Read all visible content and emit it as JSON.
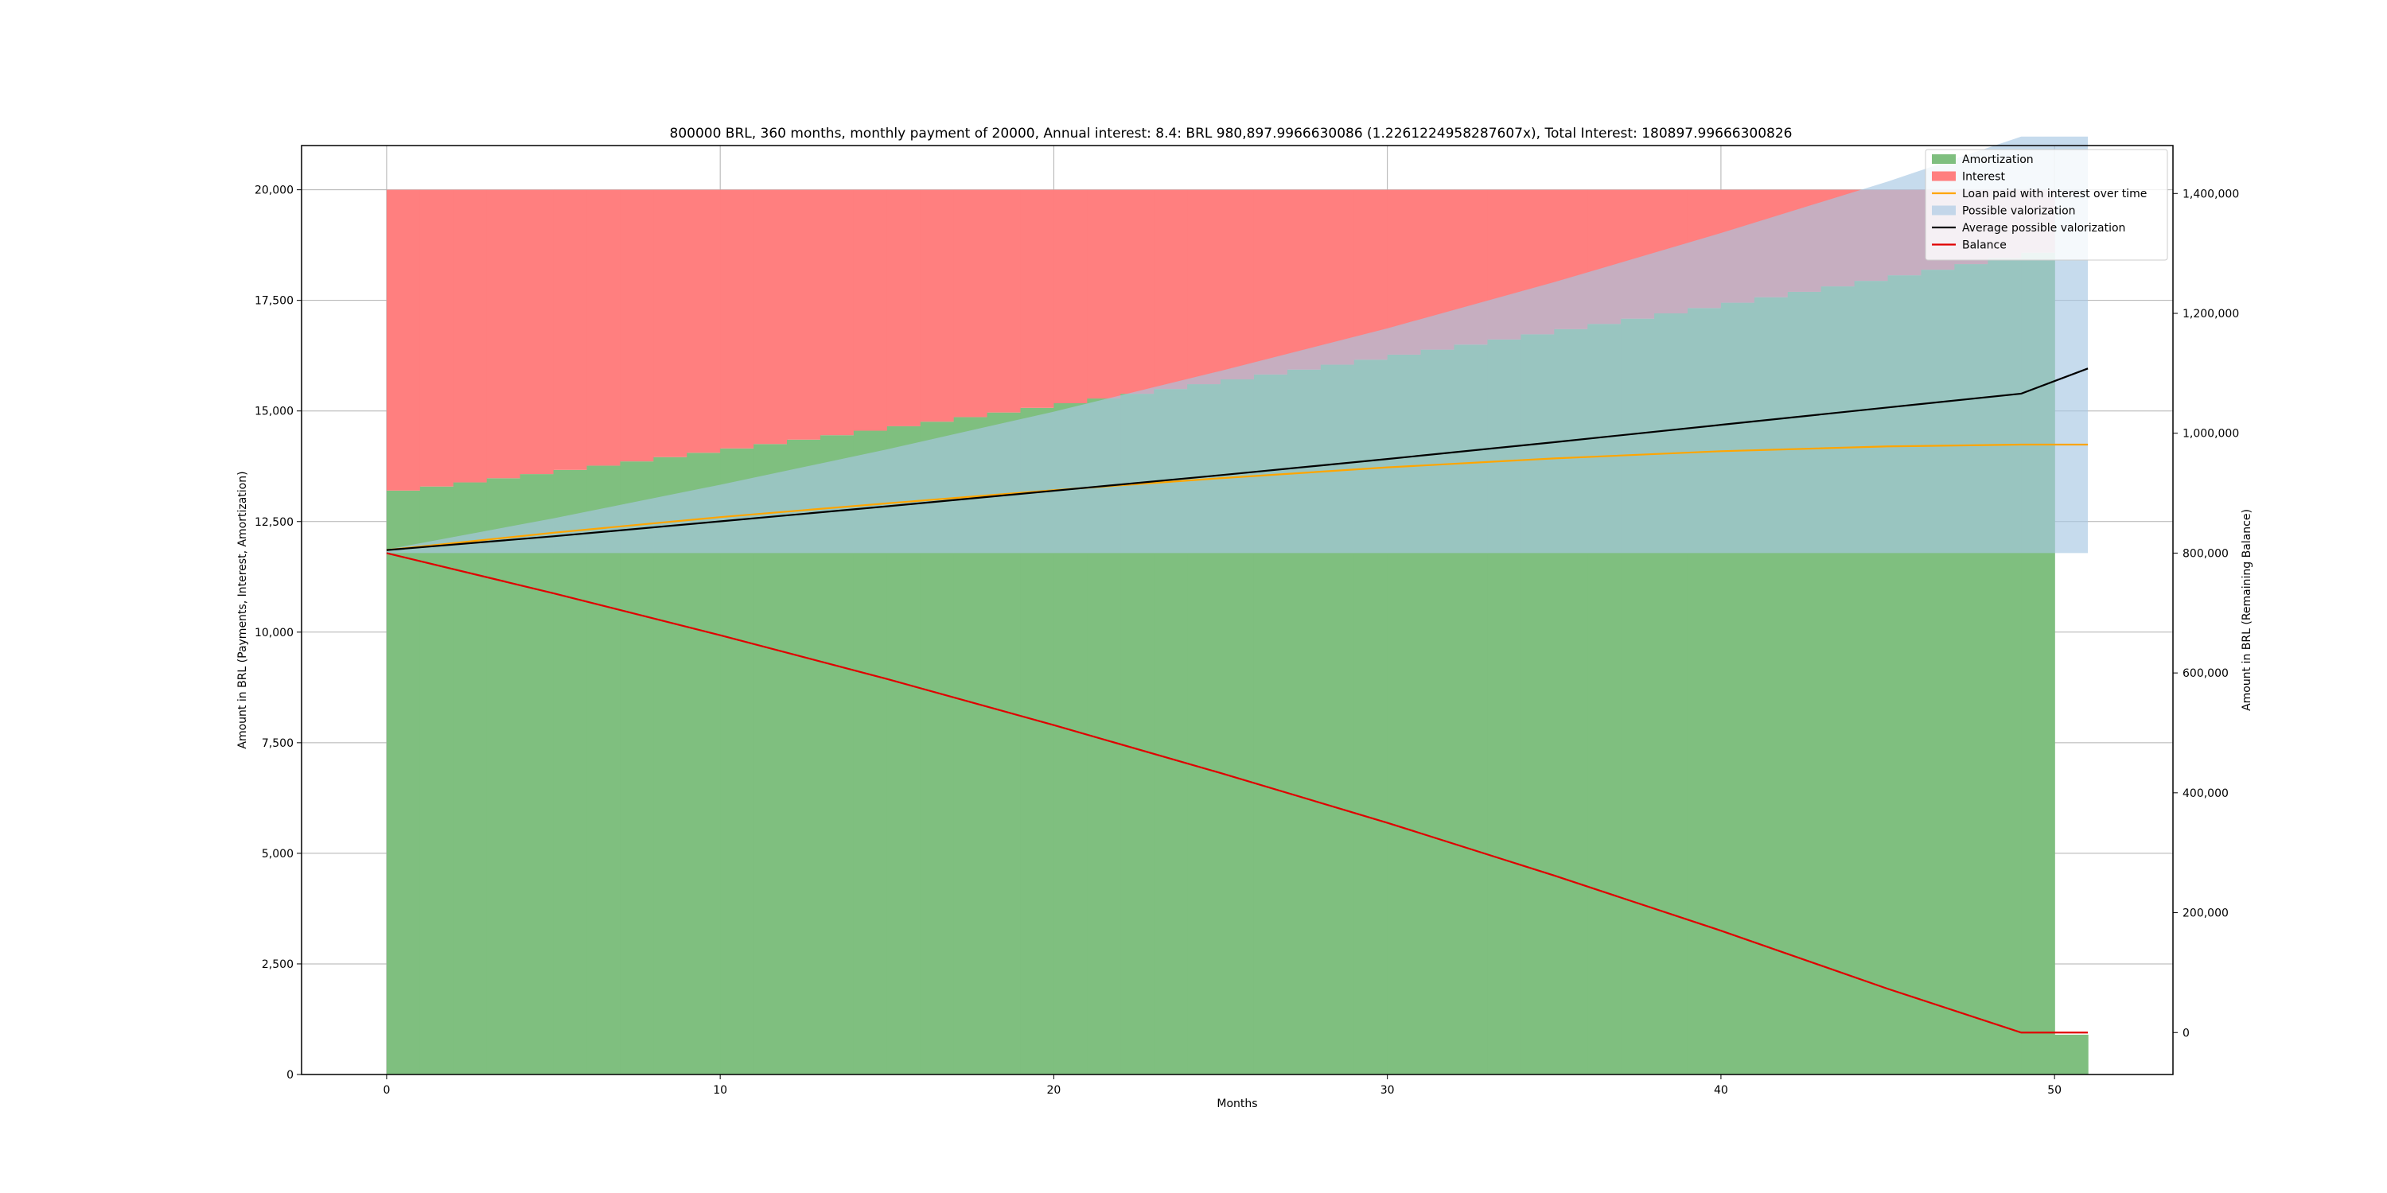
{
  "chart_data": {
    "type": "bar",
    "title": "800000 BRL, 360 months, monthly payment of 20000, Annual interest: 8.4: BRL 980,897.9966630086 (1.2261224958287607x), Total Interest: 180897.99666300826",
    "xlabel": "Months",
    "ylabel_left": "Amount in BRL (Payments, Interest, Amortization)",
    "ylabel_right": "Amount in BRL (Remaining Balance)",
    "xlim": [
      -2.55,
      53.55
    ],
    "ylim_left": [
      0,
      21000
    ],
    "ylim_right": [
      -70000,
      1480000
    ],
    "x_ticks": [
      0,
      10,
      20,
      30,
      40,
      50
    ],
    "x_tick_labels": [
      "0",
      "10",
      "20",
      "30",
      "40",
      "50"
    ],
    "y_left_ticks": [
      0,
      2500,
      5000,
      7500,
      10000,
      12500,
      15000,
      17500,
      20000
    ],
    "y_left_tick_labels": [
      "0",
      "2,500",
      "5,000",
      "7,500",
      "10,000",
      "12,500",
      "15,000",
      "17,500",
      "20,000"
    ],
    "y_right_ticks": [
      0,
      200000,
      400000,
      600000,
      800000,
      1000000,
      1200000,
      1400000
    ],
    "y_right_tick_labels": [
      "0",
      "200,000",
      "400,000",
      "600,000",
      "800,000",
      "1,000,000",
      "1,200,000",
      "1,400,000"
    ],
    "grid": true,
    "legend_placement": "top-right",
    "monthly_payment": 20000,
    "months_x": [
      0,
      1,
      2,
      3,
      4,
      5,
      6,
      7,
      8,
      9,
      10,
      11,
      12,
      13,
      14,
      15,
      16,
      17,
      18,
      19,
      20,
      21,
      22,
      23,
      24,
      25,
      26,
      27,
      28,
      29,
      30,
      31,
      32,
      33,
      34,
      35,
      36,
      37,
      38,
      39,
      40,
      41,
      42,
      43,
      44,
      45,
      46,
      47,
      48,
      49,
      50
    ],
    "amortization": [
      13200,
      13292,
      13385,
      13479,
      13573,
      13668,
      13764,
      13860,
      13957,
      14055,
      14153,
      14252,
      14352,
      14452,
      14554,
      14655,
      14758,
      14861,
      14965,
      15070,
      15175,
      15282,
      15389,
      15496,
      15605,
      15714,
      15824,
      15935,
      16046,
      16159,
      16272,
      16386,
      16500,
      16616,
      16732,
      16849,
      16967,
      17086,
      17206,
      17326,
      17447,
      17570,
      17693,
      17816,
      17941,
      18067,
      18193,
      18320,
      18449,
      18578,
      900
    ],
    "interest": [
      6800,
      6708,
      6615,
      6521,
      6427,
      6332,
      6236,
      6140,
      6043,
      5945,
      5847,
      5748,
      5648,
      5548,
      5446,
      5345,
      5242,
      5139,
      5035,
      4930,
      4825,
      4718,
      4611,
      4504,
      4395,
      4286,
      4176,
      4065,
      3954,
      3841,
      3728,
      3614,
      3500,
      3384,
      3268,
      3151,
      3033,
      2914,
      2794,
      2674,
      2553,
      2430,
      2307,
      2184,
      2059,
      1933,
      1807,
      1680,
      1551,
      1422,
      0
    ],
    "series": [
      {
        "name": "Amortization",
        "kind": "bar",
        "color": "#7fbf7f",
        "axis": "left"
      },
      {
        "name": "Interest",
        "kind": "bar",
        "color": "#ff7f7f",
        "axis": "left"
      },
      {
        "name": "Loan paid with interest over time",
        "kind": "line",
        "color": "#ffa500",
        "axis": "right",
        "x": [
          0,
          5,
          10,
          15,
          20,
          25,
          30,
          35,
          40,
          45,
          49,
          51
        ],
        "values": [
          805000,
          834000,
          860000,
          883000,
          905000,
          925000,
          943000,
          958000,
          970000,
          978000,
          981000,
          981000
        ]
      },
      {
        "name": "Possible valorization",
        "kind": "area",
        "color": "#a8c8e4",
        "axis": "right",
        "x": [
          0,
          5,
          10,
          15,
          20,
          25,
          30,
          35,
          40,
          45,
          49,
          51
        ],
        "lower": [
          800000,
          800000,
          800000,
          800000,
          800000,
          800000,
          800000,
          800000,
          800000,
          800000,
          800000,
          800000
        ],
        "upper": [
          806000,
          858000,
          914000,
          973000,
          1036000,
          1104000,
          1175000,
          1252000,
          1334000,
          1420000,
          1495000,
          1495000
        ]
      },
      {
        "name": "Average possible valorization",
        "kind": "line",
        "color": "#000000",
        "axis": "right",
        "x": [
          0,
          5,
          10,
          15,
          20,
          25,
          30,
          35,
          40,
          45,
          49,
          51
        ],
        "values": [
          805000,
          828000,
          853000,
          878000,
          904000,
          930000,
          957000,
          985000,
          1014000,
          1043000,
          1066000,
          1108000
        ]
      },
      {
        "name": "Balance",
        "kind": "line",
        "color": "#e00000",
        "axis": "right",
        "x": [
          0,
          5,
          10,
          15,
          20,
          25,
          30,
          35,
          40,
          45,
          49,
          51
        ],
        "values": [
          800000,
          733000,
          663000,
          590000,
          513000,
          433000,
          350000,
          262000,
          170000,
          73000,
          0,
          0
        ]
      }
    ]
  }
}
